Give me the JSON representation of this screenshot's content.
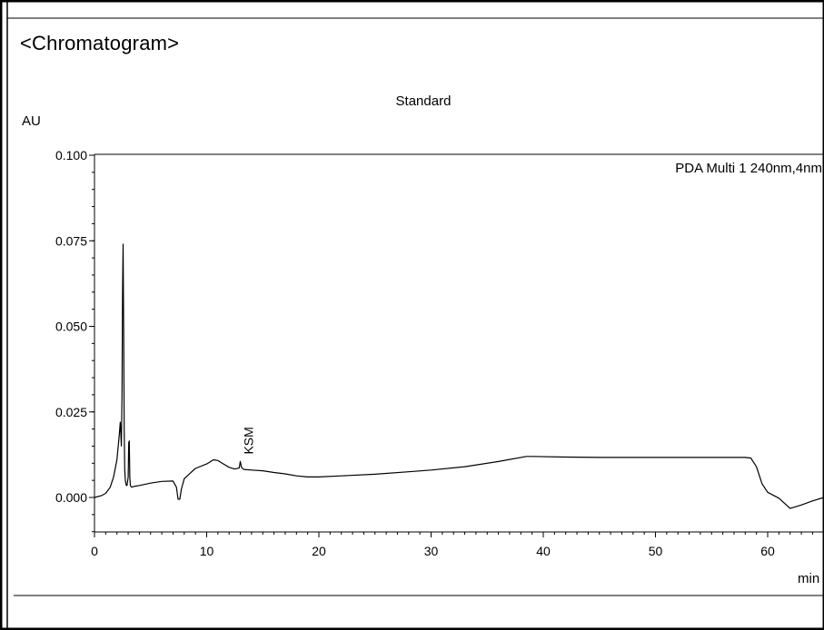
{
  "page": {
    "section_title": "<Chromatogram>"
  },
  "chart_data": {
    "type": "line",
    "title": "Standard",
    "ylabel": "AU",
    "xlabel": "min",
    "legend_text": "PDA Multi 1 240nm,4nm",
    "legend_position": "top-right",
    "xlim": [
      0,
      65
    ],
    "ylim": [
      -0.01,
      0.1
    ],
    "x_ticks": [
      0,
      10,
      20,
      30,
      40,
      50,
      60
    ],
    "x_tick_labels": [
      "0",
      "10",
      "20",
      "30",
      "40",
      "50",
      "60"
    ],
    "y_ticks": [
      0.0,
      0.025,
      0.05,
      0.075,
      0.1
    ],
    "y_tick_labels": [
      "0.000",
      "0.025",
      "0.050",
      "0.075",
      "0.100"
    ],
    "grid": false,
    "annotations": [
      {
        "text": "KSM",
        "x": 13.0,
        "y": 0.011,
        "rotation": -90
      }
    ],
    "series": [
      {
        "x": [
          0.0,
          0.6,
          1.0,
          1.4,
          1.7,
          2.0,
          2.2,
          2.3,
          2.4,
          2.45,
          2.5,
          2.55,
          2.6,
          2.65,
          2.7,
          2.75,
          2.8,
          2.85,
          2.9,
          3.0,
          3.05,
          3.1,
          3.15,
          3.2,
          3.3,
          3.5,
          4.0,
          5.0,
          6.0,
          7.0,
          7.3,
          7.45,
          7.6,
          7.75,
          8.0,
          8.5,
          9.0,
          10.0,
          10.6,
          11.0,
          11.5,
          12.0,
          12.5,
          12.9,
          13.0,
          13.1,
          13.3,
          14.0,
          15.0,
          16.0,
          17.0,
          18.0,
          19.0,
          20.0,
          22.0,
          25.0,
          28.0,
          30.0,
          33.0,
          36.0,
          38.5,
          39.0,
          42.0,
          45.0,
          50.0,
          55.0,
          58.0,
          58.5,
          59.0,
          59.5,
          60.0,
          61.0,
          62.0,
          63.0,
          64.0,
          65.0
        ],
        "y": [
          0.0,
          0.0005,
          0.0012,
          0.003,
          0.006,
          0.011,
          0.018,
          0.022,
          0.015,
          0.03,
          0.06,
          0.074,
          0.05,
          0.02,
          0.008,
          0.005,
          0.004,
          0.0035,
          0.0035,
          0.006,
          0.016,
          0.0165,
          0.006,
          0.0035,
          0.003,
          0.0032,
          0.0035,
          0.0042,
          0.0047,
          0.0048,
          0.003,
          -0.0005,
          -0.0005,
          0.0025,
          0.0055,
          0.007,
          0.0085,
          0.0098,
          0.011,
          0.0108,
          0.0098,
          0.0088,
          0.0083,
          0.0086,
          0.0105,
          0.0088,
          0.0082,
          0.008,
          0.0078,
          0.0073,
          0.0069,
          0.0063,
          0.006,
          0.006,
          0.0063,
          0.0068,
          0.0075,
          0.008,
          0.009,
          0.0105,
          0.012,
          0.012,
          0.0118,
          0.0117,
          0.0117,
          0.0117,
          0.0117,
          0.0115,
          0.009,
          0.004,
          0.0015,
          -0.0002,
          -0.0032,
          -0.0022,
          -0.001,
          0.0
        ]
      }
    ]
  }
}
